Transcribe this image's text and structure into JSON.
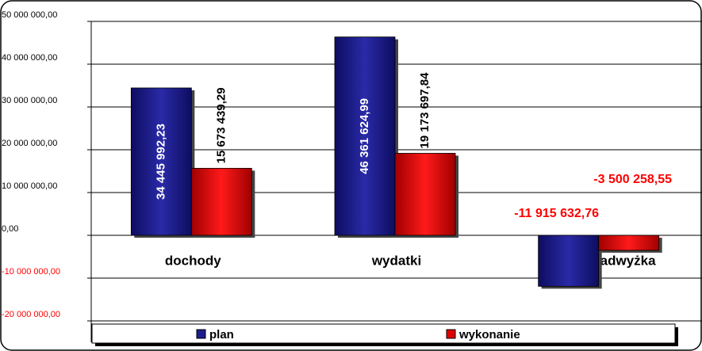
{
  "chart_data": {
    "type": "bar",
    "categories": [
      "dochody",
      "wydatki",
      "deficyt/nadwyżka"
    ],
    "series": [
      {
        "name": "plan",
        "color": "#1c1c8e",
        "values": [
          34445992.23,
          46361624.99,
          -11915632.76
        ],
        "value_labels": [
          "34 445 992,23",
          "46 361 624,99",
          "-11 915 632,76"
        ]
      },
      {
        "name": "wykonanie",
        "color": "#e00000",
        "values": [
          15673439.29,
          19173697.84,
          -3500258.55
        ],
        "value_labels": [
          "15 673 439,29",
          "19 173 697,84",
          "-3 500 258,55"
        ]
      }
    ],
    "ylim": [
      -20000000,
      50000000
    ],
    "yticks": [
      {
        "value": -20000000,
        "label": "-20 000 000,00"
      },
      {
        "value": -10000000,
        "label": "-10 000 000,00"
      },
      {
        "value": 0,
        "label": "0,00"
      },
      {
        "value": 10000000,
        "label": "10 000 000,00"
      },
      {
        "value": 20000000,
        "label": "20 000 000,00"
      },
      {
        "value": 30000000,
        "label": "30 000 000,00"
      },
      {
        "value": 40000000,
        "label": "40 000 000,00"
      },
      {
        "value": 50000000,
        "label": "50 000 000,00"
      }
    ],
    "grid": true,
    "negative_color": "#ff0000",
    "legend": "bottom"
  }
}
